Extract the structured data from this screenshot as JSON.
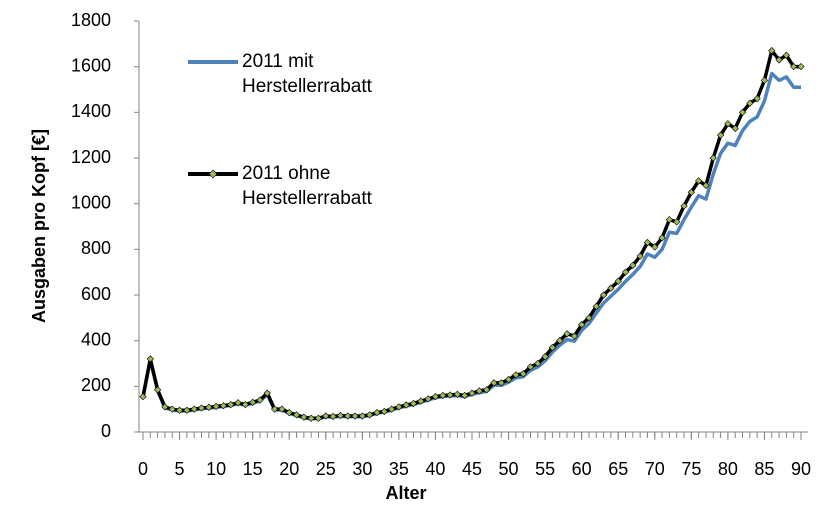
{
  "chart_data": {
    "type": "line",
    "x_label": "Alter",
    "y_label": "Ausgaben pro Kopf [€]",
    "x": [
      0,
      1,
      2,
      3,
      4,
      5,
      6,
      7,
      8,
      9,
      10,
      11,
      12,
      13,
      14,
      15,
      16,
      17,
      18,
      19,
      20,
      21,
      22,
      23,
      24,
      25,
      26,
      27,
      28,
      29,
      30,
      31,
      32,
      33,
      34,
      35,
      36,
      37,
      38,
      39,
      40,
      41,
      42,
      43,
      44,
      45,
      46,
      47,
      48,
      49,
      50,
      51,
      52,
      53,
      54,
      55,
      56,
      57,
      58,
      59,
      60,
      61,
      62,
      63,
      64,
      65,
      66,
      67,
      68,
      69,
      70,
      71,
      72,
      73,
      74,
      75,
      76,
      77,
      78,
      79,
      80,
      81,
      82,
      83,
      84,
      85,
      86,
      87,
      88,
      89,
      90
    ],
    "series": [
      {
        "name": "2011 mit Herstellerrabatt",
        "color": "#4f81bd",
        "values": [
          150,
          315,
          180,
          105,
          97,
          92,
          92,
          97,
          102,
          105,
          108,
          112,
          116,
          124,
          117,
          126,
          136,
          165,
          97,
          97,
          82,
          72,
          62,
          58,
          58,
          67,
          65,
          69,
          67,
          67,
          67,
          72,
          82,
          87,
          96,
          106,
          113,
          120,
          130,
          140,
          150,
          155,
          158,
          160,
          155,
          165,
          172,
          178,
          205,
          205,
          218,
          237,
          242,
          270,
          285,
          312,
          350,
          380,
          405,
          398,
          445,
          475,
          520,
          565,
          595,
          625,
          660,
          690,
          725,
          780,
          765,
          800,
          875,
          870,
          930,
          985,
          1035,
          1020,
          1130,
          1220,
          1265,
          1255,
          1320,
          1360,
          1380,
          1450,
          1570,
          1540,
          1555,
          1510,
          1510
        ]
      },
      {
        "name": "2011 ohne Herstellerrabatt",
        "color": "#000000",
        "marker_color": "#9bbb59",
        "values": [
          155,
          320,
          185,
          110,
          100,
          95,
          95,
          100,
          105,
          108,
          112,
          115,
          120,
          128,
          120,
          130,
          140,
          170,
          100,
          100,
          85,
          75,
          65,
          60,
          60,
          70,
          68,
          72,
          70,
          70,
          70,
          75,
          85,
          90,
          100,
          110,
          118,
          125,
          135,
          145,
          155,
          160,
          162,
          165,
          160,
          170,
          180,
          185,
          215,
          215,
          230,
          250,
          255,
          285,
          300,
          330,
          370,
          400,
          430,
          420,
          470,
          500,
          550,
          600,
          630,
          660,
          700,
          730,
          770,
          830,
          810,
          850,
          930,
          920,
          990,
          1050,
          1100,
          1080,
          1200,
          1300,
          1350,
          1330,
          1400,
          1440,
          1460,
          1540,
          1670,
          1630,
          1650,
          1600,
          1600
        ]
      }
    ],
    "xlim": [
      0,
      90
    ],
    "xticks": [
      0,
      5,
      10,
      15,
      20,
      25,
      30,
      35,
      40,
      45,
      50,
      55,
      60,
      65,
      70,
      75,
      80,
      85,
      90
    ],
    "ylim": [
      0,
      1800
    ],
    "yticks": [
      0,
      200,
      400,
      600,
      800,
      1000,
      1200,
      1400,
      1600,
      1800
    ],
    "grid": false
  }
}
